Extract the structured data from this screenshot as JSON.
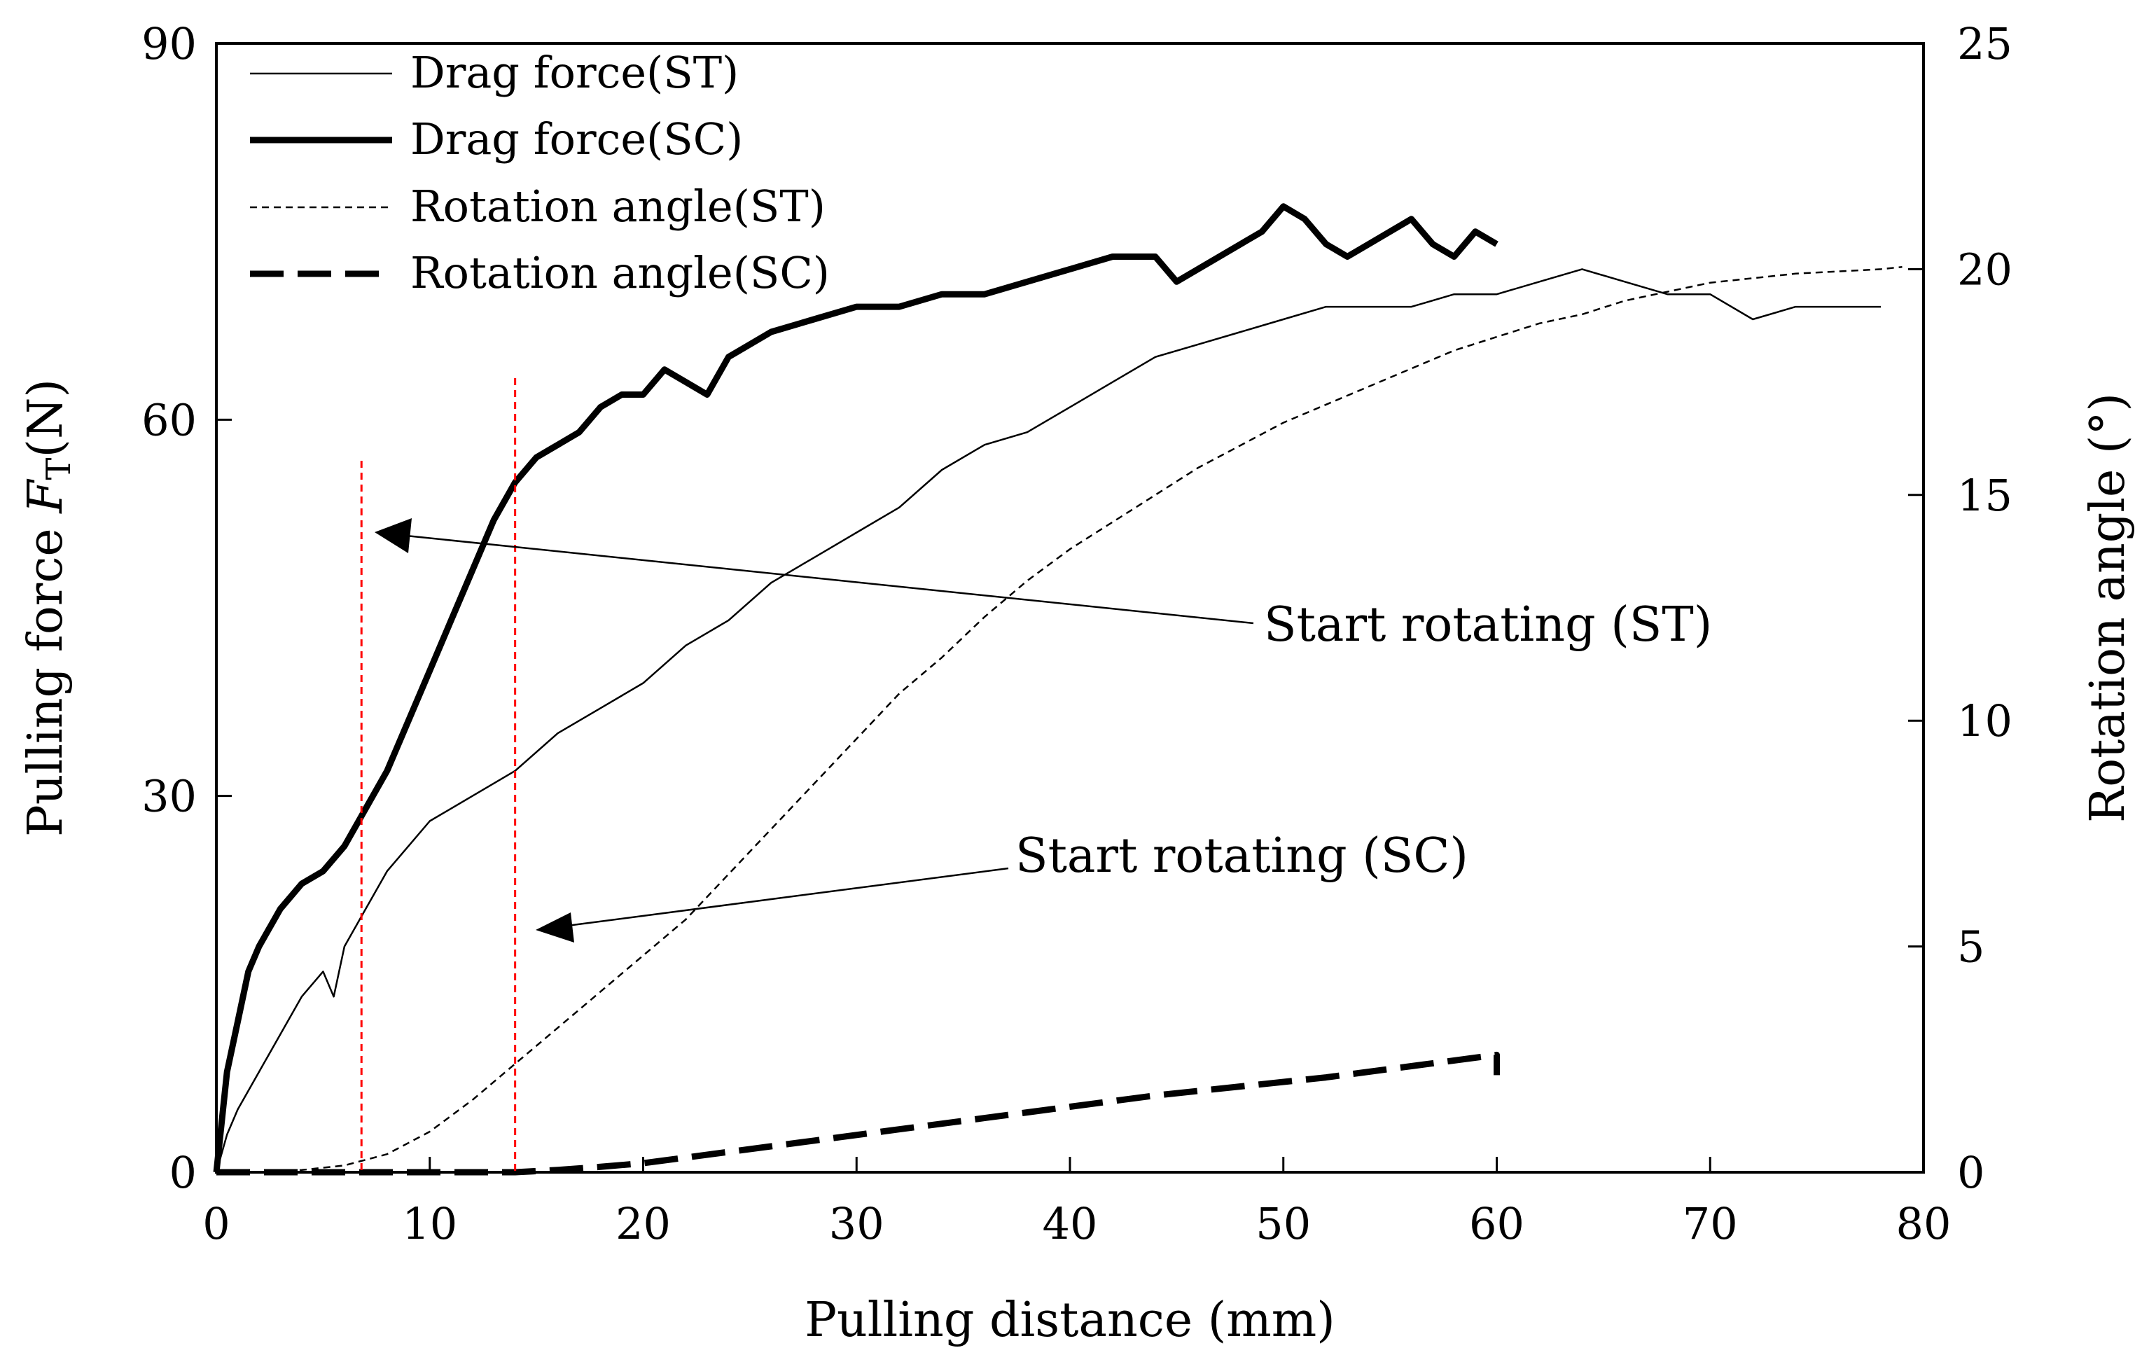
{
  "chart_data": {
    "type": "line",
    "title": "",
    "xlabel": "Pulling distance (mm)",
    "ylabel_left": "Pulling force ",
    "ylabel_left_symbol": "F",
    "ylabel_left_subscript": "T",
    "ylabel_left_unit": "(N)",
    "ylabel_right": "Rotation angle (°)",
    "xlim": [
      0,
      80
    ],
    "ylim_left": [
      0,
      90
    ],
    "ylim_right": [
      0,
      25
    ],
    "xticks": [
      0,
      10,
      20,
      30,
      40,
      50,
      60,
      70,
      80
    ],
    "yticks_left": [
      0,
      30,
      60,
      90
    ],
    "yticks_right": [
      0,
      5,
      10,
      15,
      20,
      25
    ],
    "grid": false,
    "legend_position": "top-left",
    "series": [
      {
        "name": "Drag force(ST)",
        "axis": "left",
        "style": "thin-solid",
        "x": [
          0,
          0.5,
          1,
          2,
          3,
          4,
          5,
          5.5,
          6,
          7,
          8,
          9,
          10,
          12,
          14,
          16,
          18,
          20,
          22,
          24,
          26,
          28,
          30,
          32,
          34,
          36,
          38,
          40,
          42,
          44,
          46,
          48,
          50,
          52,
          54,
          56,
          58,
          60,
          62,
          64,
          66,
          68,
          70,
          72,
          74,
          76,
          78
        ],
        "values": [
          0,
          3,
          5,
          8,
          11,
          14,
          16,
          14,
          18,
          21,
          24,
          26,
          28,
          30,
          32,
          35,
          37,
          39,
          42,
          44,
          47,
          49,
          51,
          53,
          56,
          58,
          59,
          61,
          63,
          65,
          66,
          67,
          68,
          69,
          69,
          69,
          70,
          70,
          71,
          72,
          71,
          70,
          70,
          68,
          69,
          69,
          69
        ]
      },
      {
        "name": "Drag force(SC)",
        "axis": "left",
        "style": "thick-solid",
        "x": [
          0,
          0.5,
          1,
          1.5,
          2,
          3,
          4,
          5,
          6,
          7,
          8,
          9,
          10,
          11,
          12,
          13,
          14,
          15,
          16,
          17,
          18,
          19,
          20,
          21,
          22,
          23,
          24,
          25,
          26,
          28,
          30,
          32,
          34,
          36,
          38,
          40,
          42,
          44,
          45,
          46,
          48,
          49,
          50,
          51,
          52,
          53,
          54,
          56,
          57,
          58,
          59,
          60
        ],
        "values": [
          0,
          8,
          12,
          16,
          18,
          21,
          23,
          24,
          26,
          29,
          32,
          36,
          40,
          44,
          48,
          52,
          55,
          57,
          58,
          59,
          61,
          62,
          62,
          64,
          63,
          62,
          65,
          66,
          67,
          68,
          69,
          69,
          70,
          70,
          71,
          72,
          73,
          73,
          71,
          72,
          74,
          75,
          77,
          76,
          74,
          73,
          74,
          76,
          74,
          73,
          75,
          74
        ]
      },
      {
        "name": "Rotation angle(ST)",
        "axis": "right",
        "style": "short-dash",
        "x": [
          0,
          2,
          4,
          6,
          8,
          10,
          12,
          14,
          16,
          18,
          20,
          22,
          24,
          26,
          28,
          30,
          32,
          34,
          36,
          38,
          40,
          42,
          44,
          46,
          48,
          50,
          52,
          54,
          56,
          58,
          60,
          62,
          64,
          66,
          68,
          70,
          72,
          74,
          76,
          78,
          79
        ],
        "values": [
          0,
          0,
          0.05,
          0.15,
          0.4,
          0.9,
          1.6,
          2.4,
          3.2,
          4.0,
          4.8,
          5.6,
          6.6,
          7.6,
          8.6,
          9.6,
          10.6,
          11.4,
          12.3,
          13.1,
          13.8,
          14.4,
          15.0,
          15.6,
          16.1,
          16.6,
          17.0,
          17.4,
          17.8,
          18.2,
          18.5,
          18.8,
          19.0,
          19.3,
          19.5,
          19.7,
          19.8,
          19.9,
          19.95,
          20.0,
          20.05
        ]
      },
      {
        "name": "Rotation angle(SC)",
        "axis": "right",
        "style": "long-dash",
        "x": [
          0,
          2,
          4,
          6,
          8,
          10,
          12,
          14,
          16,
          18,
          20,
          24,
          28,
          32,
          36,
          40,
          44,
          48,
          52,
          56,
          60,
          60
        ],
        "values": [
          0,
          0,
          0,
          0,
          0,
          0,
          0,
          0,
          0.05,
          0.12,
          0.2,
          0.45,
          0.7,
          0.95,
          1.2,
          1.45,
          1.7,
          1.9,
          2.1,
          2.35,
          2.6,
          2.15
        ]
      }
    ],
    "markers": [
      {
        "x": 6.8,
        "label": "Start rotating (ST)",
        "color": "#ff0000"
      },
      {
        "x": 14,
        "label": "Start rotating (SC)",
        "color": "#ff0000"
      }
    ]
  }
}
